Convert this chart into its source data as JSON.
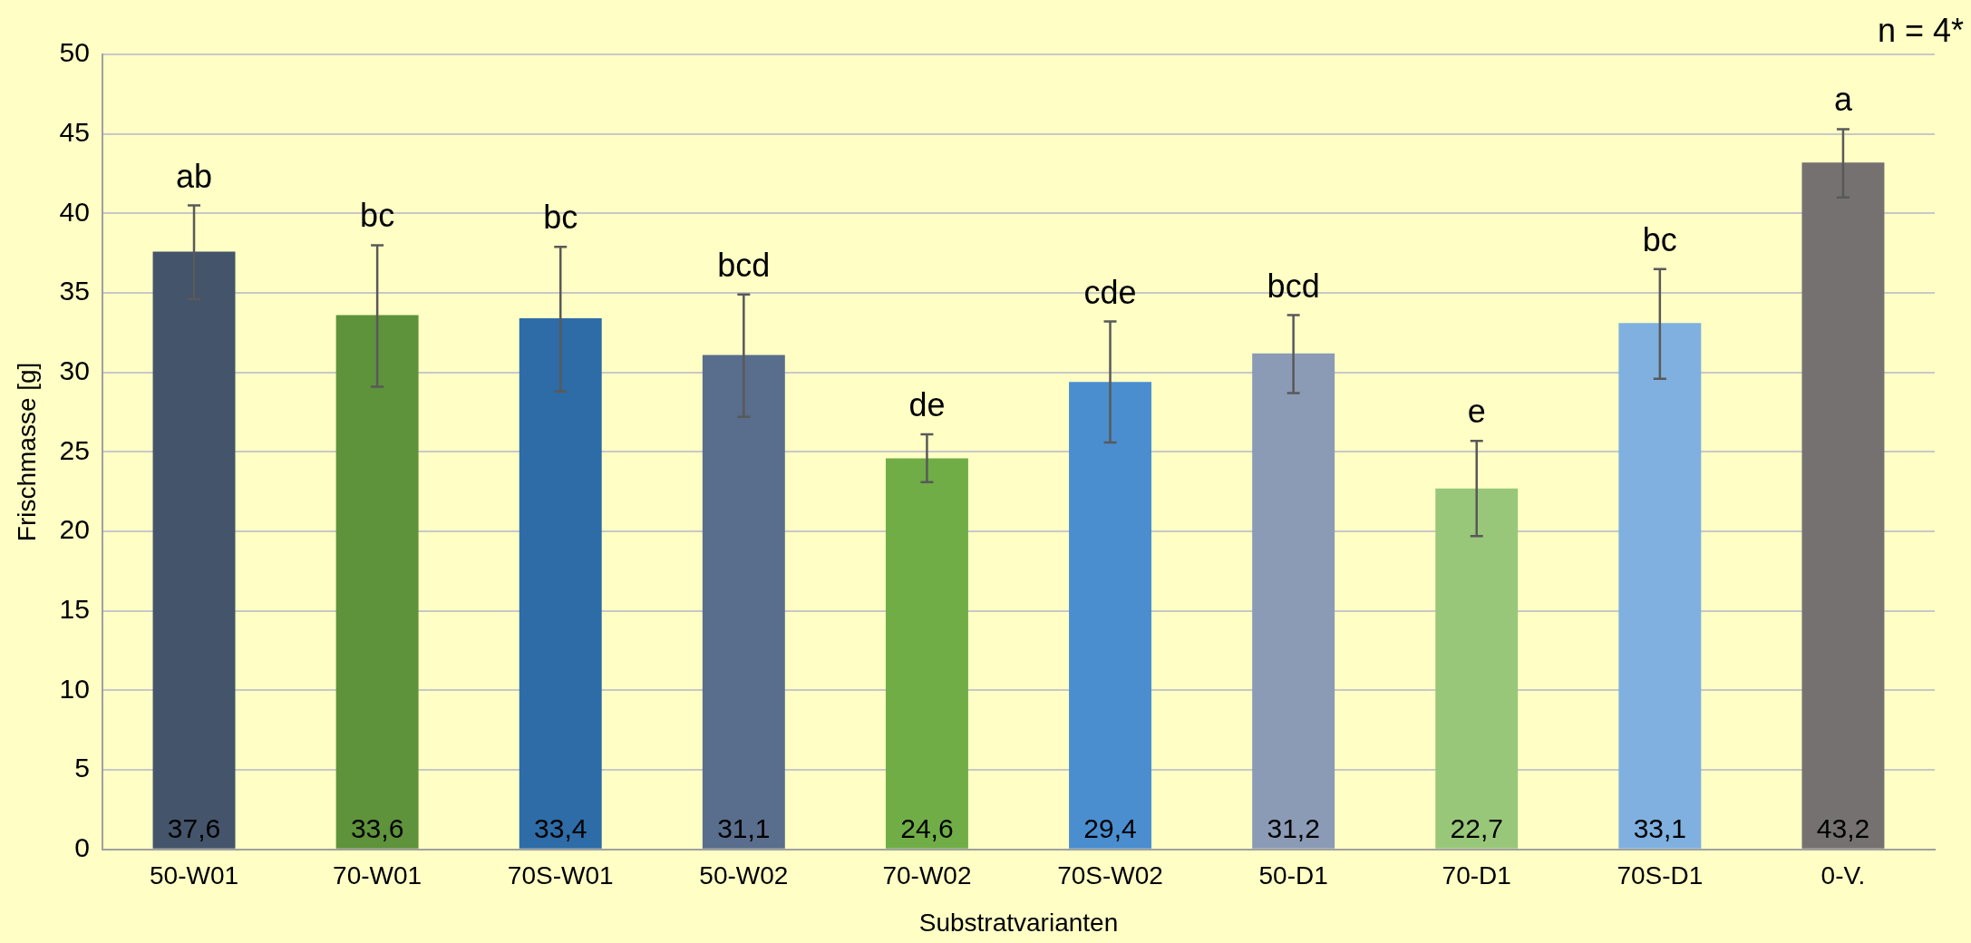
{
  "chart_data": {
    "type": "bar",
    "xlabel": "Substratvarianten",
    "ylabel": "Frischmasse [g]",
    "categories": [
      "50-W01",
      "70-W01",
      "70S-W01",
      "50-W02",
      "70-W02",
      "70S-W02",
      "50-D1",
      "70-D1",
      "70S-D1",
      "0-V."
    ],
    "values": [
      37.6,
      33.6,
      33.4,
      31.1,
      24.6,
      29.4,
      31.2,
      22.7,
      33.1,
      43.2
    ],
    "colors": [
      "#44546a",
      "#5e923b",
      "#2e6ca7",
      "#596d8c",
      "#70ad47",
      "#4a8ed0",
      "#8b9bb6",
      "#99c77a",
      "#7fb0e0",
      "#767171"
    ],
    "errors": [
      [
        34.6,
        40.5
      ],
      [
        29.1,
        38.0
      ],
      [
        28.8,
        37.9
      ],
      [
        27.2,
        34.9
      ],
      [
        23.1,
        26.1
      ],
      [
        25.6,
        33.2
      ],
      [
        28.7,
        33.6
      ],
      [
        19.7,
        25.7
      ],
      [
        29.6,
        36.5
      ],
      [
        41.0,
        45.3
      ]
    ],
    "value_labels": [
      "37,6",
      "33,6",
      "33,4",
      "31,1",
      "24,6",
      "29,4",
      "31,2",
      "22,7",
      "33,1",
      "43,2"
    ],
    "ylim": [
      0,
      50
    ],
    "yticks": [
      0,
      5,
      10,
      15,
      20,
      25,
      30,
      35,
      40,
      45,
      50
    ],
    "grid": "y",
    "legend": false,
    "annotations": [
      {
        "text": "ab",
        "x": "50-W01",
        "y": 40.5
      },
      {
        "text": "bc",
        "x": "70-W01",
        "y": 38.0
      },
      {
        "text": "bc",
        "x": "70S-W01",
        "y": 37.9
      },
      {
        "text": "bcd",
        "x": "50-W02",
        "y": 34.9
      },
      {
        "text": "de",
        "x": "70-W02",
        "y": 26.1
      },
      {
        "text": "cde",
        "x": "70S-W02",
        "y": 33.2
      },
      {
        "text": "bcd",
        "x": "50-D1",
        "y": 33.6
      },
      {
        "text": "e",
        "x": "70-D1",
        "y": 25.7
      },
      {
        "text": "bc",
        "x": "70S-D1",
        "y": 36.5
      },
      {
        "text": "a",
        "x": "0-V.",
        "y": 45.3
      },
      "n = 4*"
    ]
  }
}
